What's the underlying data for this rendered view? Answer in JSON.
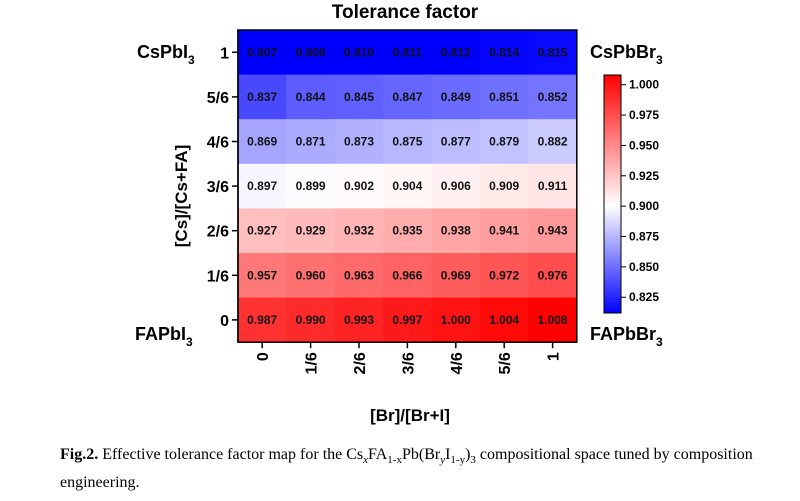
{
  "chart_data": {
    "type": "heatmap",
    "title": "Tolerance factor",
    "xlabel": "[Br]/[Br+I]",
    "ylabel": "[Cs]/[Cs+FA]",
    "x_categories": [
      "0",
      "1/6",
      "2/6",
      "3/6",
      "4/6",
      "5/6",
      "1"
    ],
    "y_categories": [
      "1",
      "5/6",
      "4/6",
      "3/6",
      "2/6",
      "1/6",
      "0"
    ],
    "values": [
      [
        "0.807",
        "0.808",
        "0.810",
        "0.811",
        "0.812",
        "0.814",
        "0.815"
      ],
      [
        "0.837",
        "0.844",
        "0.845",
        "0.847",
        "0.849",
        "0.851",
        "0.852"
      ],
      [
        "0.869",
        "0.871",
        "0.873",
        "0.875",
        "0.877",
        "0.879",
        "0.882"
      ],
      [
        "0.897",
        "0.899",
        "0.902",
        "0.904",
        "0.906",
        "0.909",
        "0.911"
      ],
      [
        "0.927",
        "0.929",
        "0.932",
        "0.935",
        "0.938",
        "0.941",
        "0.943"
      ],
      [
        "0.957",
        "0.960",
        "0.963",
        "0.966",
        "0.969",
        "0.972",
        "0.976"
      ],
      [
        "0.987",
        "0.990",
        "0.993",
        "0.997",
        "1.000",
        "1.004",
        "1.008"
      ]
    ],
    "colorbar": {
      "range": [
        0.812,
        1.008
      ],
      "ticks": [
        "1.000",
        "0.975",
        "0.950",
        "0.925",
        "0.900",
        "0.875",
        "0.850",
        "0.825"
      ],
      "colors": {
        "low": "#0000ff",
        "mid": "#ffffff",
        "high": "#ff0000"
      }
    },
    "corner_labels": {
      "top_left": {
        "main": "CsPbI",
        "sub": "3"
      },
      "top_right": {
        "main": "CsPbBr",
        "sub": "3"
      },
      "bottom_left": {
        "main": "FAPbI",
        "sub": "3"
      },
      "bottom_right": {
        "main": "FAPbBr",
        "sub": "3"
      }
    }
  },
  "caption": {
    "label": "Fig.2.",
    "text_before": "Effective tolerance factor map for the Cs",
    "x": "x",
    "fa": "FA",
    "sub_1mx": "1-x",
    "pb_br": "Pb(Br",
    "y": "y",
    "i": "I",
    "sub_1my": "1-y",
    "sub_3": "3",
    "text_after": "compositional space tuned by composition engineering."
  }
}
